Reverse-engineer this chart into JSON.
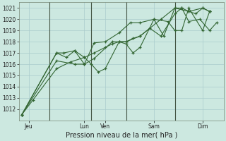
{
  "background_color": "#cce8e0",
  "grid_color": "#aacccc",
  "line_color": "#336633",
  "marker_color": "#336633",
  "ylim": [
    1011,
    1021.5
  ],
  "yticks": [
    1012,
    1013,
    1014,
    1015,
    1016,
    1017,
    1018,
    1019,
    1020,
    1021
  ],
  "xlabel": "Pression niveau de la mer( hPa )",
  "day_labels": [
    "Jeu",
    "Lun",
    "Ven",
    "Sam",
    "Dim"
  ],
  "day_tick_positions": [
    0.5,
    4.5,
    6.0,
    9.5,
    13.0
  ],
  "day_vline_positions": [
    2.0,
    5.0,
    7.5,
    11.0
  ],
  "xlim": [
    -0.2,
    14.5
  ],
  "series": [
    {
      "x": [
        0,
        0.8,
        2.5,
        3.5,
        4.5,
        5.2,
        6.0,
        6.5,
        7.0,
        7.5,
        8.0,
        8.5,
        9.2,
        10.0,
        11.0,
        11.5,
        12.0,
        12.5,
        13.0,
        13.5
      ],
      "y": [
        1011.5,
        1012.8,
        1015.6,
        1016.2,
        1016.6,
        1017.0,
        1017.5,
        1017.8,
        1018.0,
        1018.0,
        1018.3,
        1018.5,
        1019.2,
        1018.5,
        1020.5,
        1021.0,
        1020.7,
        1020.5,
        1021.0,
        1020.7
      ]
    },
    {
      "x": [
        0,
        2.5,
        3.0,
        3.8,
        4.5,
        5.0,
        5.5,
        6.0,
        7.0,
        7.5,
        8.0,
        8.5,
        9.5,
        10.2,
        11.0,
        11.5,
        12.0,
        12.8,
        13.5,
        14.0
      ],
      "y": [
        1011.5,
        1017.0,
        1017.0,
        1017.2,
        1016.6,
        1016.0,
        1015.3,
        1015.6,
        1018.0,
        1017.8,
        1017.0,
        1017.5,
        1020.0,
        1018.5,
        1021.0,
        1021.0,
        1019.8,
        1020.0,
        1019.0,
        1019.7
      ]
    },
    {
      "x": [
        0,
        2.5,
        3.2,
        3.8,
        4.5,
        5.2,
        6.5,
        7.5,
        8.5,
        10.0,
        11.0,
        12.0,
        13.0,
        13.5
      ],
      "y": [
        1011.5,
        1017.0,
        1016.6,
        1017.2,
        1016.0,
        1016.5,
        1018.0,
        1018.0,
        1018.5,
        1020.0,
        1021.0,
        1020.7,
        1021.0,
        1020.7
      ]
    },
    {
      "x": [
        0,
        2.5,
        3.8,
        4.5,
        5.2,
        6.0,
        7.0,
        7.8,
        8.5,
        9.5,
        10.5,
        11.0,
        11.5,
        12.0,
        13.0,
        13.5
      ],
      "y": [
        1011.5,
        1016.3,
        1016.0,
        1016.0,
        1017.9,
        1018.0,
        1018.8,
        1019.7,
        1019.7,
        1020.0,
        1019.8,
        1019.0,
        1019.0,
        1021.0,
        1019.0,
        1020.7
      ]
    }
  ],
  "tick_fontsize": 5.5,
  "label_fontsize": 7
}
